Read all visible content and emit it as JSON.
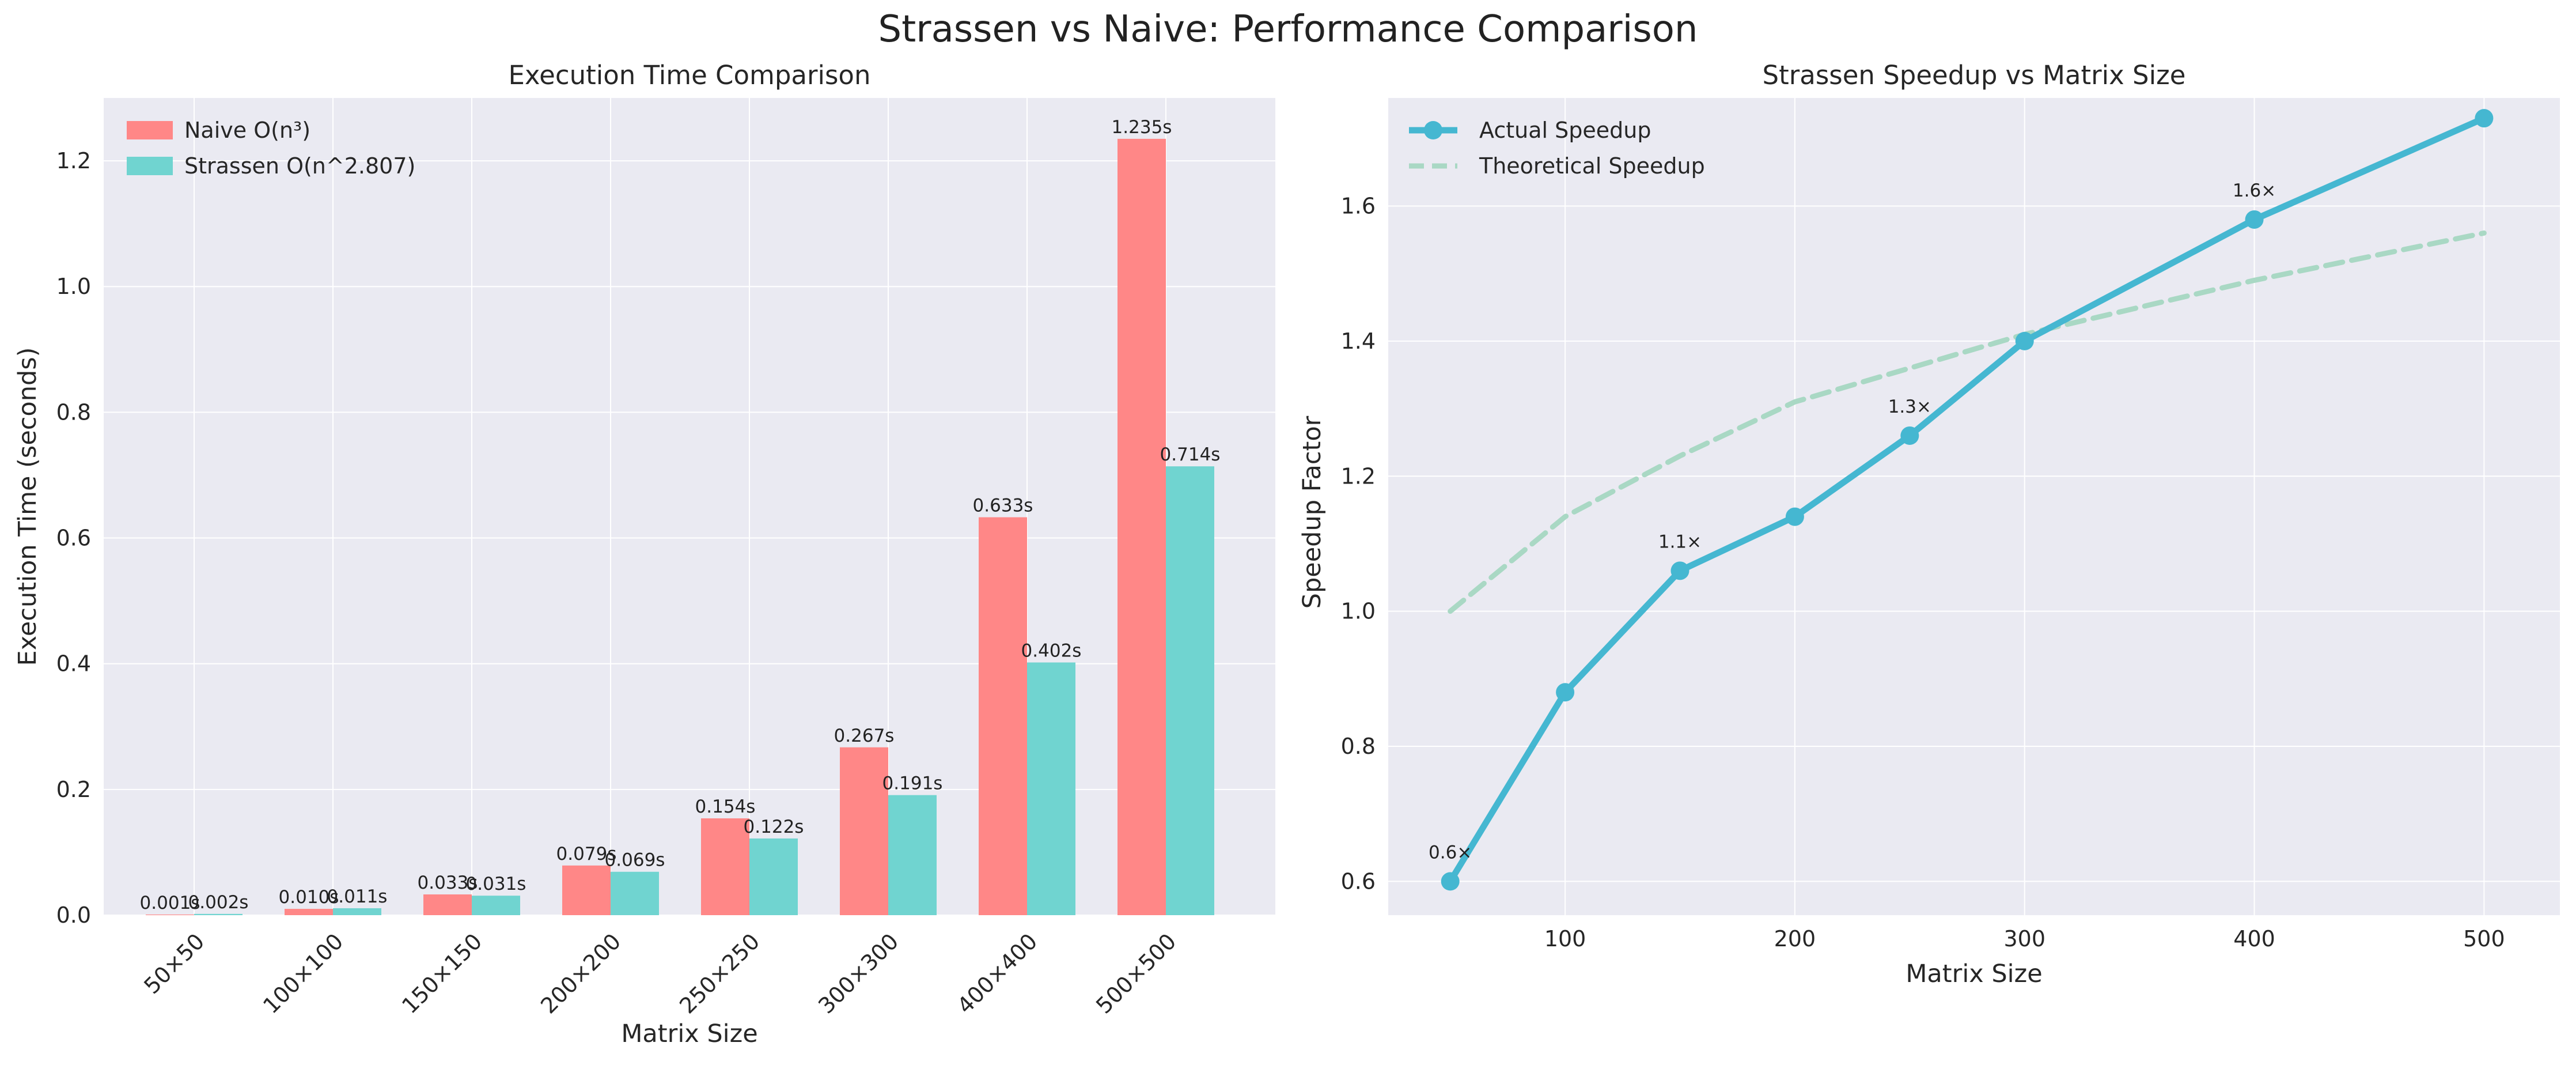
{
  "figure_title": "Strassen vs Naive: Performance Comparison",
  "colors": {
    "naive": "#ff8787",
    "strassen": "#70d4d0",
    "actual": "#45b7d1",
    "theoretical": "#a9d8c4",
    "panel_bg": "#eaeaf2",
    "grid": "#ffffff"
  },
  "chart_data": [
    {
      "type": "bar",
      "title": "Execution Time Comparison",
      "xlabel": "Matrix Size",
      "ylabel": "Execution Time (seconds)",
      "ylim": [
        0,
        1.3
      ],
      "yticks": [
        0.0,
        0.2,
        0.4,
        0.6,
        0.8,
        1.0,
        1.2
      ],
      "ytick_labels": [
        "0.0",
        "0.2",
        "0.4",
        "0.6",
        "0.8",
        "1.0",
        "1.2"
      ],
      "categories": [
        "50×50",
        "100×100",
        "150×150",
        "200×200",
        "250×250",
        "300×300",
        "400×400",
        "500×500"
      ],
      "series": [
        {
          "name": "Naive O(n³)",
          "values": [
            0.001,
            0.01,
            0.033,
            0.079,
            0.154,
            0.267,
            0.633,
            1.235
          ],
          "labels": [
            "0.001s",
            "0.010s",
            "0.033s",
            "0.079s",
            "0.154s",
            "0.267s",
            "0.633s",
            "1.235s"
          ]
        },
        {
          "name": "Strassen O(n^2.807)",
          "values": [
            0.002,
            0.011,
            0.031,
            0.069,
            0.122,
            0.191,
            0.402,
            0.714
          ],
          "labels": [
            "0.002s",
            "0.011s",
            "0.031s",
            "0.069s",
            "0.122s",
            "0.191s",
            "0.402s",
            "0.714s"
          ]
        }
      ],
      "legend": "top-left",
      "grid": true
    },
    {
      "type": "line",
      "title": "Strassen Speedup vs Matrix Size",
      "xlabel": "Matrix Size",
      "ylabel": "Speedup Factor",
      "xlim": [
        23,
        533
      ],
      "ylim": [
        0.55,
        1.76
      ],
      "xticks": [
        100,
        200,
        300,
        400,
        500
      ],
      "xtick_labels": [
        "100",
        "200",
        "300",
        "400",
        "500"
      ],
      "yticks": [
        0.6,
        0.8,
        1.0,
        1.2,
        1.4,
        1.6
      ],
      "ytick_labels": [
        "0.6",
        "0.8",
        "1.0",
        "1.2",
        "1.4",
        "1.6"
      ],
      "x": [
        50,
        100,
        150,
        200,
        250,
        300,
        400,
        500
      ],
      "series": [
        {
          "name": "Actual Speedup",
          "values": [
            0.6,
            0.88,
            1.06,
            1.14,
            1.26,
            1.4,
            1.58,
            1.73
          ],
          "style": "solid-markers"
        },
        {
          "name": "Theoretical Speedup",
          "values": [
            1.0,
            1.14,
            1.23,
            1.31,
            1.36,
            1.41,
            1.49,
            1.56
          ],
          "style": "dashed"
        }
      ],
      "annotations": [
        {
          "x": 50,
          "y": 0.6,
          "text": "0.6×"
        },
        {
          "x": 150,
          "y": 1.06,
          "text": "1.1×"
        },
        {
          "x": 250,
          "y": 1.26,
          "text": "1.3×"
        },
        {
          "x": 400,
          "y": 1.58,
          "text": "1.6×"
        }
      ],
      "legend": "top-left",
      "grid": true
    }
  ]
}
